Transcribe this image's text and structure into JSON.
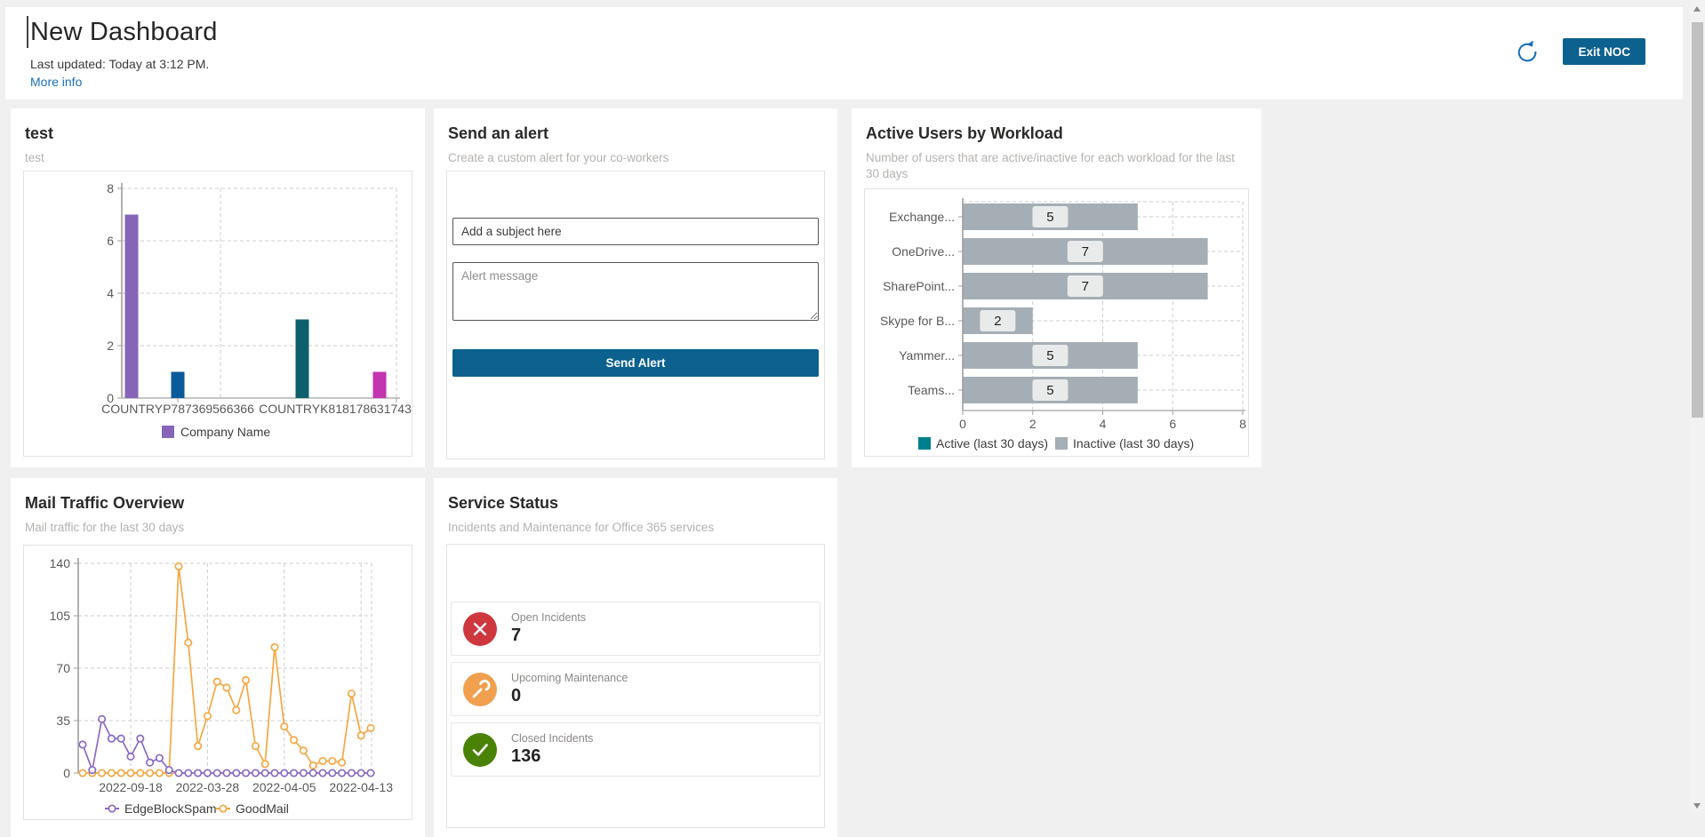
{
  "header": {
    "title": "New Dashboard",
    "last_updated": "Last updated: Today at 3:12 PM.",
    "more_info": "More info",
    "exit_button": "Exit NOC"
  },
  "colors": {
    "accent_blue": "#0c618f",
    "link_blue": "#1a70b8",
    "status_red": "#cf373e",
    "status_orange": "#f0a04e",
    "status_green": "#498205"
  },
  "cards": {
    "test": {
      "title": "test",
      "subtitle": "test"
    },
    "send_alert": {
      "title": "Send an alert",
      "subtitle": "Create a custom alert for your co-workers",
      "subject_placeholder": "Add a subject here",
      "message_placeholder": "Alert message",
      "send_label": "Send Alert"
    },
    "active_users": {
      "title": "Active Users by Workload",
      "subtitle": "Number of users that are active/inactive for each workload for the last 30 days"
    },
    "mail_traffic": {
      "title": "Mail Traffic Overview",
      "subtitle": "Mail traffic for the last 30 days"
    },
    "service_status": {
      "title": "Service Status",
      "subtitle": "Incidents and Maintenance for Office 365 services",
      "rows": [
        {
          "icon": "error-icon",
          "color": "#cf373e",
          "label": "Open Incidents",
          "value": "7"
        },
        {
          "icon": "wrench-icon",
          "color": "#f0a04e",
          "label": "Upcoming Maintenance",
          "value": "0"
        },
        {
          "icon": "check-icon",
          "color": "#498205",
          "label": "Closed Incidents",
          "value": "136"
        }
      ]
    }
  },
  "chart_data": [
    {
      "type": "bar",
      "title": "test",
      "categories": [
        "COUNTRYP787369566366",
        "COUNTRYK818178631743"
      ],
      "bars": [
        {
          "category": 0,
          "value": 7,
          "color": "#8764b8"
        },
        {
          "category": 0,
          "value": 1,
          "color": "#0b5a9b"
        },
        {
          "category": 1,
          "value": 3,
          "color": "#0d5f6d"
        },
        {
          "category": 1,
          "value": 1,
          "color": "#c234b0"
        }
      ],
      "ylim": [
        0,
        8
      ],
      "yticks": [
        0,
        2,
        4,
        6,
        8
      ],
      "grid": true,
      "legend": [
        {
          "label": "Company Name",
          "color": "#8764b8"
        }
      ],
      "legend_position": "bottom"
    },
    {
      "type": "bar",
      "title": "Active Users by Workload",
      "orientation": "horizontal",
      "categories": [
        "Exchange...",
        "OneDrive...",
        "SharePoint...",
        "Skype for B...",
        "Yammer...",
        "Teams..."
      ],
      "values": [
        5,
        7,
        7,
        2,
        5,
        5
      ],
      "bar_color": "#a5aeb4",
      "value_labels": [
        "5",
        "7",
        "7",
        "2",
        "5",
        "5"
      ],
      "xlim": [
        0,
        8
      ],
      "xticks": [
        0,
        2,
        4,
        6,
        8
      ],
      "grid": true,
      "legend": [
        {
          "label": "Active (last 30 days)",
          "color": "#00808c"
        },
        {
          "label": "Inactive (last 30 days)",
          "color": "#a5aeb4"
        }
      ],
      "legend_position": "bottom"
    },
    {
      "type": "line",
      "title": "Mail Traffic Overview",
      "x_tick_labels": [
        "2022-09-18",
        "2022-03-28",
        "2022-04-05",
        "2022-04-13"
      ],
      "x_tick_indices": [
        5,
        13,
        21,
        29
      ],
      "ylim": [
        0,
        140
      ],
      "yticks": [
        0,
        35,
        70,
        105,
        140
      ],
      "grid": true,
      "legend_position": "bottom",
      "series": [
        {
          "name": "EdgeBlockSpam",
          "color": "#8a6bc1",
          "values": [
            19,
            2,
            36,
            23,
            23,
            11,
            23,
            7,
            10,
            2,
            0,
            0,
            0,
            0,
            0,
            0,
            0,
            0,
            0,
            0,
            0,
            0,
            0,
            0,
            0,
            0,
            0,
            0,
            0,
            0,
            0
          ]
        },
        {
          "name": "GoodMail",
          "color": "#f5a742",
          "values": [
            0,
            0,
            0,
            0,
            0,
            0,
            0,
            0,
            0,
            0,
            138,
            87,
            18,
            38,
            61,
            57,
            42,
            62,
            18,
            6,
            84,
            31,
            22,
            15,
            5,
            8,
            8,
            7,
            53,
            25,
            30
          ]
        }
      ]
    }
  ]
}
